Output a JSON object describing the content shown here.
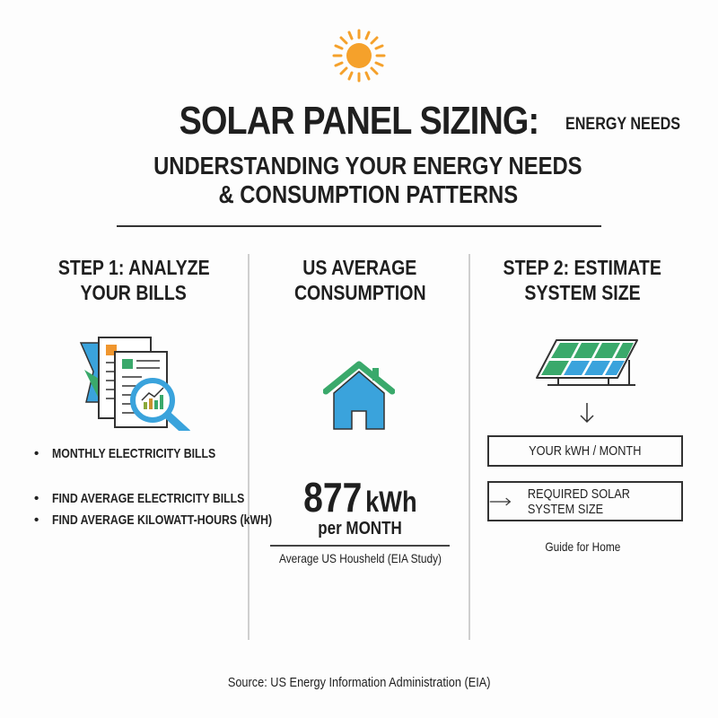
{
  "header": {
    "title": "SOLAR PANEL SIZING:",
    "title_tag": "ENERGY NEEDS",
    "subtitle_line1": "UNDERSTANDING YOUR ENERGY NEEDS",
    "subtitle_line2": "& CONSUMPTION PATTERNS",
    "icon": "sun-icon"
  },
  "columns": {
    "step1": {
      "heading_line1": "STEP 1: ANALYZE",
      "heading_line2": "YOUR BILLS",
      "icon": "bills-magnifier-icon",
      "bullets": [
        "MONTHLY ELECTRICITY BILLS",
        "FIND AVERAGE ELECTRICITY BILLS",
        "FIND AVERAGE KILOWATT-HOURS (kWH)"
      ]
    },
    "average": {
      "heading_line1": "US AVERAGE",
      "heading_line2": "CONSUMPTION",
      "icon": "house-icon",
      "value": "877",
      "unit": "kWh",
      "period": "per MONTH",
      "caption": "Average US Housheld (EIA Study)"
    },
    "step2": {
      "heading_line1": "STEP 2: ESTIMATE",
      "heading_line2": "SYSTEM SIZE",
      "icon": "solar-panel-icon",
      "arrow_icon": "arrow-down-icon",
      "box1": "YOUR kWH / MONTH",
      "box2": "REQUIRED SOLAR SYSTEM SIZE",
      "box2_icon": "arrow-right-icon",
      "caption": "Guide for Home"
    }
  },
  "footer": {
    "source": "Source: US Energy Information Administration (EIA)"
  },
  "colors": {
    "sun": "#f5a12b",
    "green": "#3aa96b",
    "blue": "#3aa3dc",
    "orange": "#f0962e"
  }
}
